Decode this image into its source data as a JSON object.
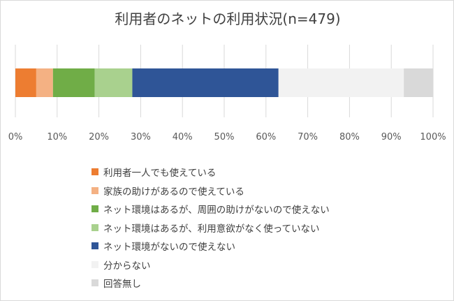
{
  "chart_data": {
    "type": "bar",
    "orientation": "horizontal",
    "stacked": true,
    "title": "利用者のネットの利用状況(n=479)",
    "xlim": [
      0,
      100
    ],
    "x_ticks": [
      "0%",
      "10%",
      "20%",
      "30%",
      "40%",
      "50%",
      "60%",
      "70%",
      "80%",
      "90%",
      "100%"
    ],
    "grid": true,
    "legend_position": "bottom",
    "series": [
      {
        "name": "利用者一人でも使えている",
        "value": 5,
        "color": "#ED7D31"
      },
      {
        "name": "家族の助けがあるので使えている",
        "value": 4,
        "color": "#F4B183"
      },
      {
        "name": "ネット環境はあるが、周囲の助けがないので使えない",
        "value": 10,
        "color": "#70AD47"
      },
      {
        "name": "ネット環境はあるが、利用意欲がなく使っていない",
        "value": 9,
        "color": "#A9D18E"
      },
      {
        "name": "ネット環境がないので使えない",
        "value": 35,
        "color": "#2F5597"
      },
      {
        "name": "分からない",
        "value": 30,
        "color": "#F2F2F2"
      },
      {
        "name": "回答無し",
        "value": 7,
        "color": "#D9D9D9"
      }
    ]
  }
}
